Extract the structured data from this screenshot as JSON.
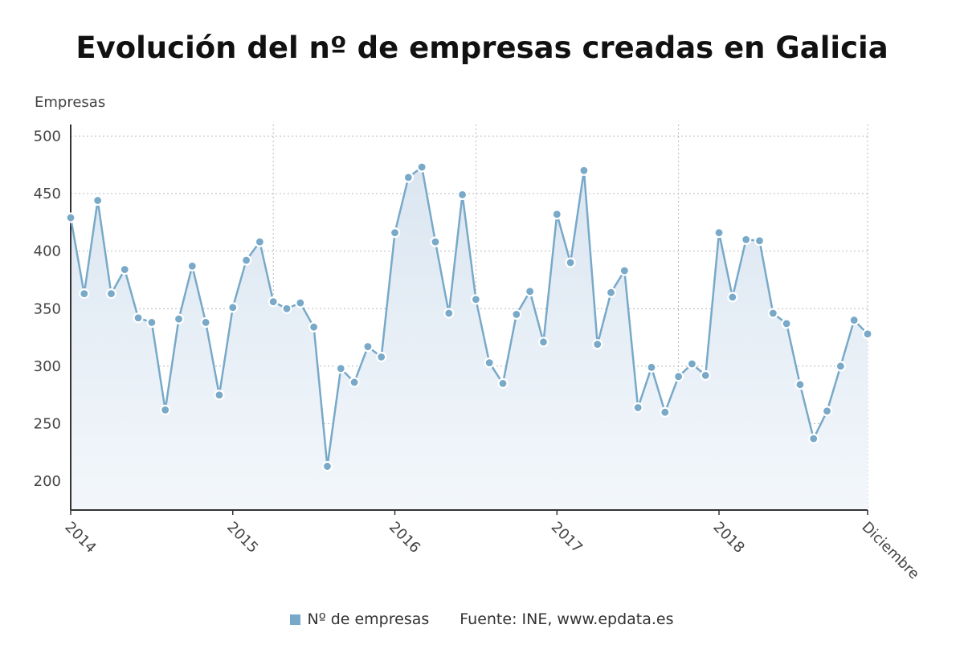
{
  "colors": {
    "series": "#78a9c8",
    "fill_top": "#dbe6f1",
    "fill_bottom": "#f3f7fb",
    "axis": "#333333"
  },
  "chart_data": {
    "type": "area",
    "title": "Evolución del nº de empresas creadas en Galicia",
    "ylabel": "Empresas",
    "xlabel": "",
    "ylim": [
      175,
      510
    ],
    "yticks": [
      200,
      250,
      300,
      350,
      400,
      450,
      500
    ],
    "grid": true,
    "legend_position": "bottom-center",
    "x_tick_labels": [
      {
        "index": 0,
        "label": "2014"
      },
      {
        "index": 12,
        "label": "2015"
      },
      {
        "index": 24,
        "label": "2016"
      },
      {
        "index": 36,
        "label": "2017"
      },
      {
        "index": 48,
        "label": "2018"
      },
      {
        "index": 59,
        "label": "Diciembre"
      }
    ],
    "x_start": "2014-01",
    "x_end": "2018-12",
    "series": [
      {
        "name": "Nº de empresas",
        "values": [
          429,
          363,
          444,
          363,
          384,
          342,
          338,
          262,
          341,
          387,
          338,
          275,
          351,
          392,
          408,
          356,
          350,
          355,
          334,
          213,
          298,
          286,
          317,
          308,
          416,
          464,
          473,
          408,
          346,
          449,
          358,
          303,
          285,
          345,
          365,
          321,
          432,
          390,
          470,
          319,
          364,
          383,
          264,
          299,
          260,
          291,
          302,
          292,
          416,
          360,
          410,
          409,
          346,
          337,
          284,
          237,
          261,
          300,
          340,
          328
        ]
      }
    ]
  },
  "legend": {
    "series_label": "Nº de empresas",
    "source": "Fuente: INE, www.epdata.es"
  }
}
